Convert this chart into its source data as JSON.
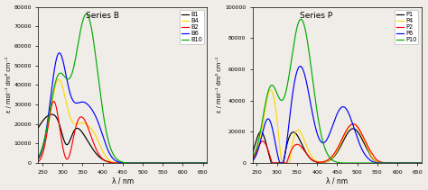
{
  "title_B": "Series B",
  "title_P": "Series P",
  "xlabel": "λ / nm",
  "ylabel": "ε / mol⁻¹ dm³ cm⁻¹",
  "xlim": [
    240,
    660
  ],
  "ylim_B": [
    0,
    80000
  ],
  "ylim_P": [
    0,
    100000
  ],
  "xticks": [
    250,
    300,
    350,
    400,
    450,
    500,
    550,
    600,
    650
  ],
  "yticks_B": [
    0,
    10000,
    20000,
    30000,
    40000,
    50000,
    60000,
    70000,
    80000
  ],
  "yticks_P": [
    0,
    20000,
    40000,
    60000,
    80000,
    100000
  ],
  "colors": {
    "B1": "#000000",
    "B4": "#FFD700",
    "B2": "#FF0000",
    "B6": "#0000FF",
    "B10": "#00AA00",
    "P1": "#000000",
    "P4": "#FFD700",
    "P2": "#FF0000",
    "P6": "#0000FF",
    "P10": "#00AA00"
  },
  "background_color": "#f0ede8",
  "linewidth": 0.85
}
